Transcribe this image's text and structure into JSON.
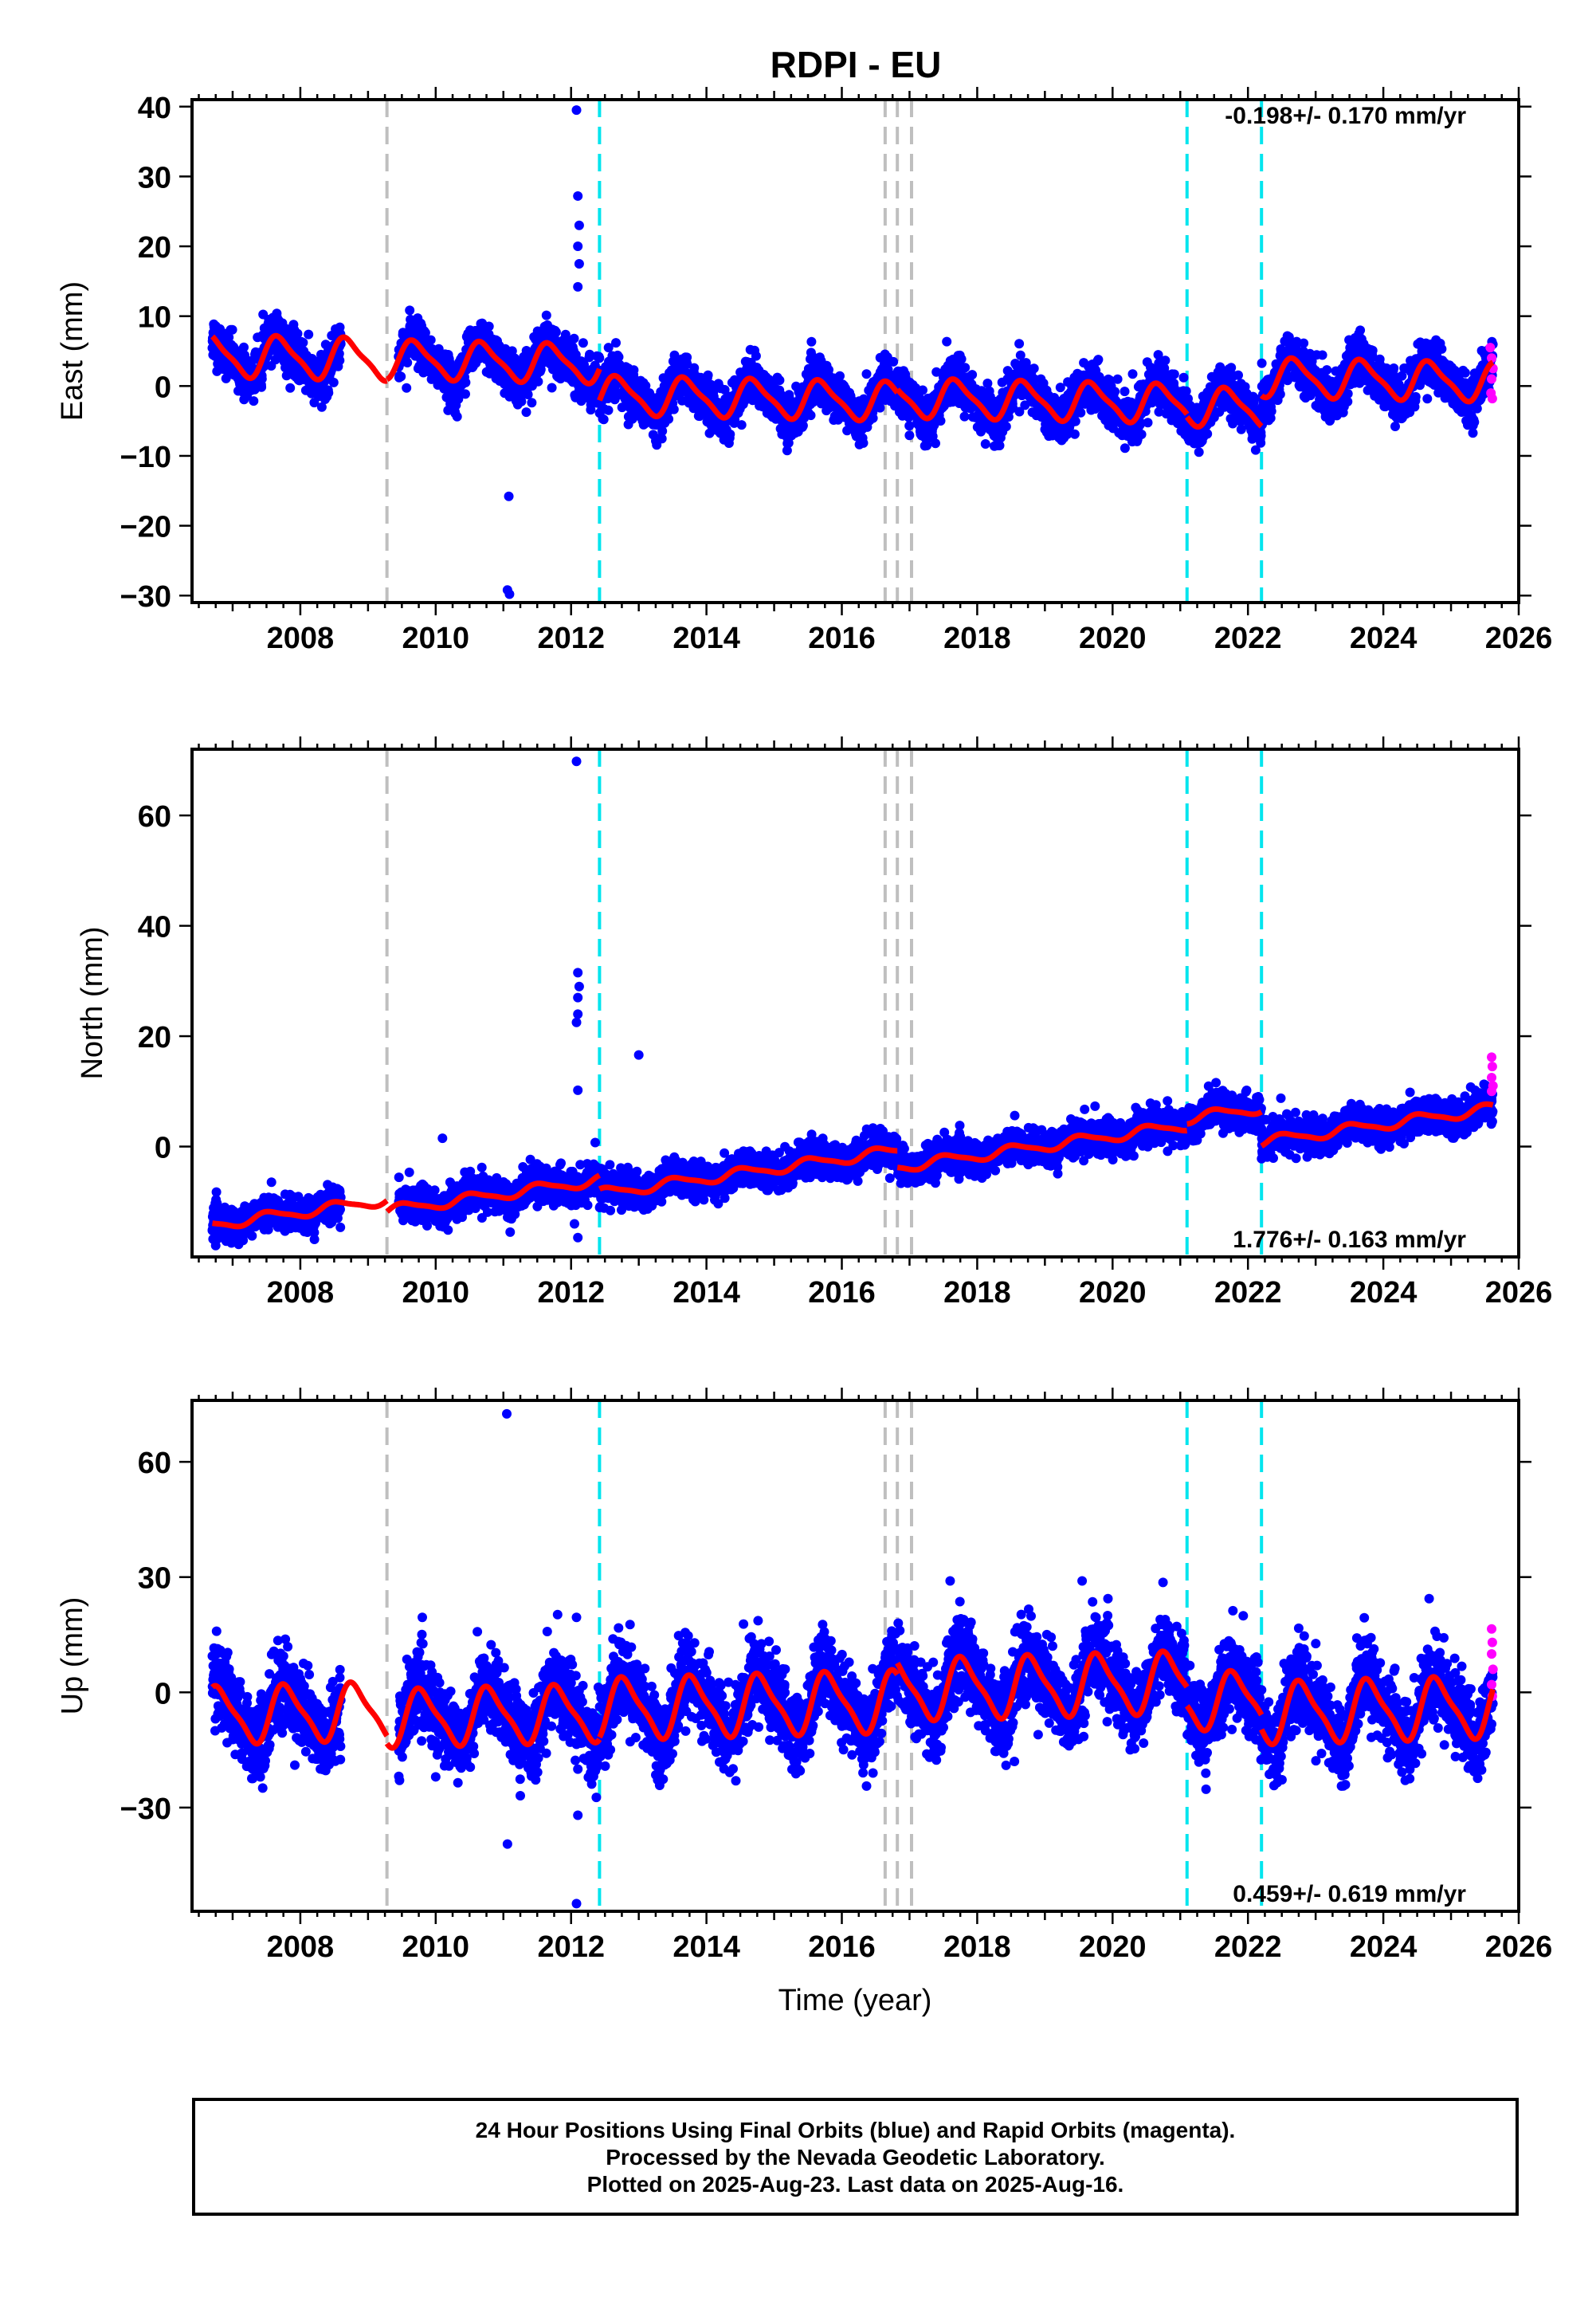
{
  "chart_data": {
    "title": "RDPI - EU",
    "type": "scatter",
    "xlabel": "Time (year)",
    "xlim": [
      2006.4,
      2026.0
    ],
    "xticks": [
      2008,
      2010,
      2012,
      2014,
      2016,
      2018,
      2020,
      2022,
      2024,
      2026
    ],
    "xtick_labels": [
      "2008",
      "2010",
      "2012",
      "2014",
      "2016",
      "2018",
      "2020",
      "2022",
      "2024",
      "2026"
    ],
    "colors": {
      "final_orbits": "#0000ff",
      "rapid_orbits": "#ff00ff",
      "model": "#ff0000",
      "antenna_change": "#bfbfbf",
      "earthquake": "#00e5ee"
    },
    "event_lines": {
      "gray": [
        2009.28,
        2016.64,
        2016.82,
        2017.03
      ],
      "cyan": [
        2012.42,
        2021.1,
        2022.2
      ]
    },
    "panels": [
      {
        "name": "east",
        "ylabel": "East (mm)",
        "ylim": [
          -31,
          41
        ],
        "yticks": [
          -30,
          -20,
          -10,
          0,
          10,
          20,
          30,
          40
        ],
        "ytick_labels": [
          "−30",
          "−20",
          "−10",
          "0",
          "10",
          "20",
          "30",
          "40"
        ],
        "velocity": "-0.198+/- 0.170 mm/yr",
        "velocity_position": "top-right",
        "trend": -0.198,
        "offset": 4.3,
        "amplitude": 3.0,
        "phase": 0.45,
        "noise": 1.6,
        "segments": [
          {
            "start": 2006.7,
            "end": 2009.28,
            "level": 0,
            "amplitude": 2.8
          },
          {
            "start": 2009.28,
            "end": 2012.42,
            "level": 0,
            "amplitude": 2.6
          },
          {
            "start": 2012.42,
            "end": 2016.82,
            "level": -4.5,
            "amplitude": 2.6
          },
          {
            "start": 2016.82,
            "end": 2021.1,
            "level": -4.0,
            "amplitude": 2.6
          },
          {
            "start": 2021.1,
            "end": 2022.2,
            "level": -4.4,
            "amplitude": 2.6
          },
          {
            "start": 2022.2,
            "end": 2025.62,
            "level": 0,
            "amplitude": 2.6
          }
        ],
        "gaps": [
          [
            2008.6,
            2009.45
          ]
        ],
        "outliers": [
          [
            2012.08,
            39.5
          ],
          [
            2012.1,
            27.2
          ],
          [
            2012.12,
            23.0
          ],
          [
            2012.1,
            20.0
          ],
          [
            2012.12,
            17.5
          ],
          [
            2012.1,
            14.2
          ],
          [
            2011.08,
            -15.8
          ],
          [
            2011.06,
            -29.2
          ],
          [
            2011.09,
            -29.8
          ],
          [
            2021.05,
            1.2
          ]
        ],
        "rapid": [
          [
            2025.58,
            5.5
          ],
          [
            2025.6,
            4.0
          ],
          [
            2025.62,
            2.5
          ],
          [
            2025.59,
            -1.0
          ],
          [
            2025.61,
            -1.8
          ],
          [
            2025.6,
            1.0
          ]
        ]
      },
      {
        "name": "north",
        "ylabel": "North (mm)",
        "ylim": [
          -20,
          72
        ],
        "yticks": [
          0,
          20,
          40,
          60
        ],
        "ytick_labels": [
          "0",
          "20",
          "40",
          "60"
        ],
        "velocity": "1.776+/- 0.163 mm/yr",
        "velocity_position": "bottom-right",
        "trend": 1.776,
        "offset": -14.2,
        "amplitude": 0.9,
        "phase": 0.3,
        "noise": 1.5,
        "segments": [
          {
            "start": 2006.7,
            "end": 2009.28,
            "level": 0,
            "amplitude": 0.9
          },
          {
            "start": 2009.28,
            "end": 2012.42,
            "level": -2.0,
            "amplitude": 0.9
          },
          {
            "start": 2012.42,
            "end": 2016.82,
            "level": -4.5,
            "amplitude": 0.9
          },
          {
            "start": 2016.82,
            "end": 2021.1,
            "level": -7.5,
            "amplitude": 0.9
          },
          {
            "start": 2021.1,
            "end": 2022.2,
            "level": -6.3,
            "amplitude": 0.9
          },
          {
            "start": 2022.2,
            "end": 2025.62,
            "level": -12.5,
            "amplitude": 0.9
          }
        ],
        "gaps": [
          [
            2008.6,
            2009.45
          ]
        ],
        "outliers": [
          [
            2012.08,
            69.8
          ],
          [
            2012.1,
            31.5
          ],
          [
            2012.12,
            29.0
          ],
          [
            2012.1,
            27.0
          ],
          [
            2012.1,
            24.0
          ],
          [
            2012.08,
            22.5
          ],
          [
            2012.1,
            10.2
          ],
          [
            2013.0,
            16.6
          ],
          [
            2010.1,
            1.5
          ],
          [
            2012.05,
            -14.0
          ],
          [
            2012.1,
            -16.5
          ],
          [
            2011.1,
            -15.5
          ]
        ],
        "rapid": [
          [
            2025.6,
            16.2
          ],
          [
            2025.61,
            14.5
          ],
          [
            2025.6,
            12.5
          ],
          [
            2025.62,
            11.0
          ],
          [
            2025.6,
            10.0
          ]
        ]
      },
      {
        "name": "up",
        "ylabel": "Up (mm)",
        "ylim": [
          -57,
          76
        ],
        "yticks": [
          -30,
          0,
          30,
          60
        ],
        "ytick_labels": [
          "−30",
          "0",
          "30",
          "60"
        ],
        "velocity": "0.459+/- 0.619 mm/yr",
        "velocity_position": "bottom-right",
        "trend": 0.459,
        "offset": -6.0,
        "amplitude": 7.5,
        "phase": 0.55,
        "noise": 5.0,
        "segments": [
          {
            "start": 2006.7,
            "end": 2009.28,
            "level": 0,
            "amplitude": 7.0
          },
          {
            "start": 2009.28,
            "end": 2012.42,
            "level": -2.0,
            "amplitude": 7.0
          },
          {
            "start": 2012.42,
            "end": 2016.82,
            "level": -1.0,
            "amplitude": 7.5
          },
          {
            "start": 2016.82,
            "end": 2021.1,
            "level": 2.0,
            "amplitude": 7.5
          },
          {
            "start": 2021.1,
            "end": 2022.2,
            "level": -3.0,
            "amplitude": 7.0
          },
          {
            "start": 2022.2,
            "end": 2025.62,
            "level": -6.5,
            "amplitude": 7.5
          }
        ],
        "gaps": [
          [
            2008.6,
            2009.45
          ]
        ],
        "outliers": [
          [
            2011.05,
            72.5
          ],
          [
            2012.08,
            19.5
          ],
          [
            2012.1,
            -20.0
          ],
          [
            2012.1,
            -32.0
          ],
          [
            2012.08,
            -55.0
          ],
          [
            2011.06,
            -39.5
          ],
          [
            2017.6,
            29.0
          ],
          [
            2019.55,
            29.0
          ],
          [
            2018.55,
            -18.0
          ],
          [
            2010.0,
            -22.0
          ]
        ],
        "rapid": [
          [
            2025.6,
            16.5
          ],
          [
            2025.61,
            13.0
          ],
          [
            2025.6,
            10.0
          ],
          [
            2025.62,
            6.0
          ],
          [
            2025.6,
            2.0
          ],
          [
            2025.61,
            -1.0
          ]
        ]
      }
    ],
    "caption": [
      "24 Hour Positions Using Final Orbits (blue) and Rapid Orbits (magenta).",
      "Processed by the Nevada Geodetic Laboratory.",
      "Plotted on 2025-Aug-23. Last data on 2025-Aug-16."
    ]
  }
}
